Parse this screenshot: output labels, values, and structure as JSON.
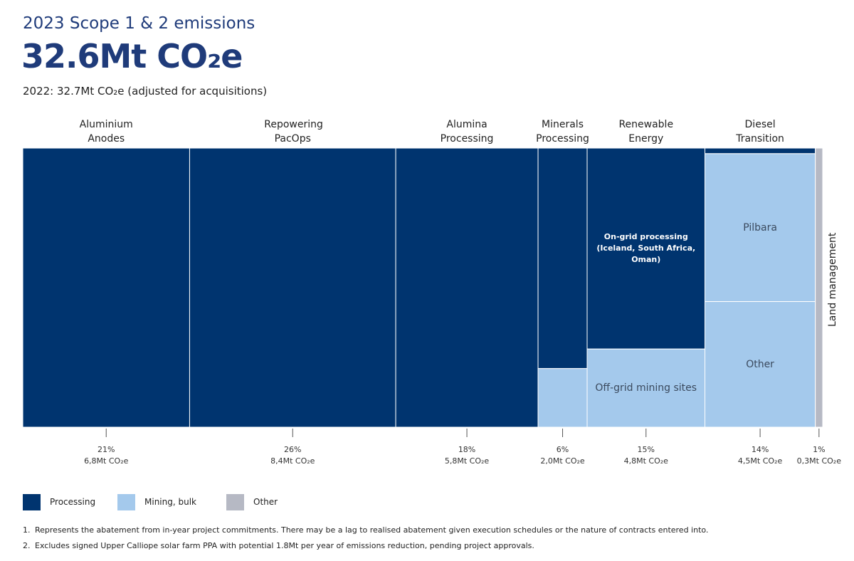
{
  "chart_data": {
    "type": "marimekko",
    "title": "2023 Scope 1 & 2 emissions",
    "headline": "32.6Mt CO₂e",
    "subtitle": "2022: 32.7Mt CO₂e (adjusted for acquisitions)",
    "series": [
      {
        "name": "Processing",
        "color": "#00346f"
      },
      {
        "name": "Mining, bulk",
        "color": "#a4c9ec"
      },
      {
        "name": "Other",
        "color": "#b6b9c4"
      }
    ],
    "columns": [
      {
        "name": "Aluminium Anodes",
        "share": 21,
        "share_label": "21%",
        "value": 6.8,
        "value_label": "6,8Mt CO₂e",
        "segments": [
          {
            "group": "Processing",
            "share": 100
          }
        ]
      },
      {
        "name": "Repowering PacOps",
        "share": 26,
        "share_label": "26%",
        "value": 8.4,
        "value_label": "8,4Mt CO₂e",
        "segments": [
          {
            "group": "Processing",
            "share": 100
          }
        ]
      },
      {
        "name": "Alumina Processing",
        "share": 18,
        "share_label": "18%",
        "value": 5.8,
        "value_label": "5,8Mt CO₂e",
        "segments": [
          {
            "group": "Processing",
            "share": 100
          }
        ]
      },
      {
        "name": "Minerals Processing",
        "share": 6,
        "share_label": "6%",
        "value": 2.0,
        "value_label": "2,0Mt CO₂e",
        "segments": [
          {
            "group": "Processing",
            "share": 79
          },
          {
            "group": "Mining, bulk",
            "share": 21
          }
        ]
      },
      {
        "name": "Renewable Energy",
        "share": 15,
        "share_label": "15%",
        "value": 4.8,
        "value_label": "4,8Mt CO₂e",
        "segments": [
          {
            "group": "Processing",
            "share": 72,
            "label": "On-grid processing (Iceland, South Africa, Oman)"
          },
          {
            "group": "Mining, bulk",
            "share": 28,
            "label": "Off-grid mining sites"
          }
        ]
      },
      {
        "name": "Diesel Transition",
        "share": 14,
        "share_label": "14%",
        "value": 4.5,
        "value_label": "4,5Mt CO₂e",
        "segments": [
          {
            "group": "Processing",
            "share": 2
          },
          {
            "group": "Mining, bulk",
            "share": 53,
            "label": "Pilbara"
          },
          {
            "group": "Mining, bulk",
            "share": 45,
            "label": "Other"
          }
        ]
      },
      {
        "name": "Land management",
        "share": 1,
        "share_label": "1%",
        "value": 0.3,
        "value_label": "0,3Mt CO₂e",
        "segments": [
          {
            "group": "Other",
            "share": 100
          }
        ]
      }
    ],
    "notes": [
      {
        "number": "1.",
        "text": "Represents the abatement from in-year project commitments. There may be a lag to realised abatement given execution schedules or the nature of contracts entered into."
      },
      {
        "number": "2.",
        "text": "Excludes signed Upper Calliope solar farm PPA with potential 1.8Mt per year of emissions reduction, pending project approvals."
      }
    ]
  }
}
